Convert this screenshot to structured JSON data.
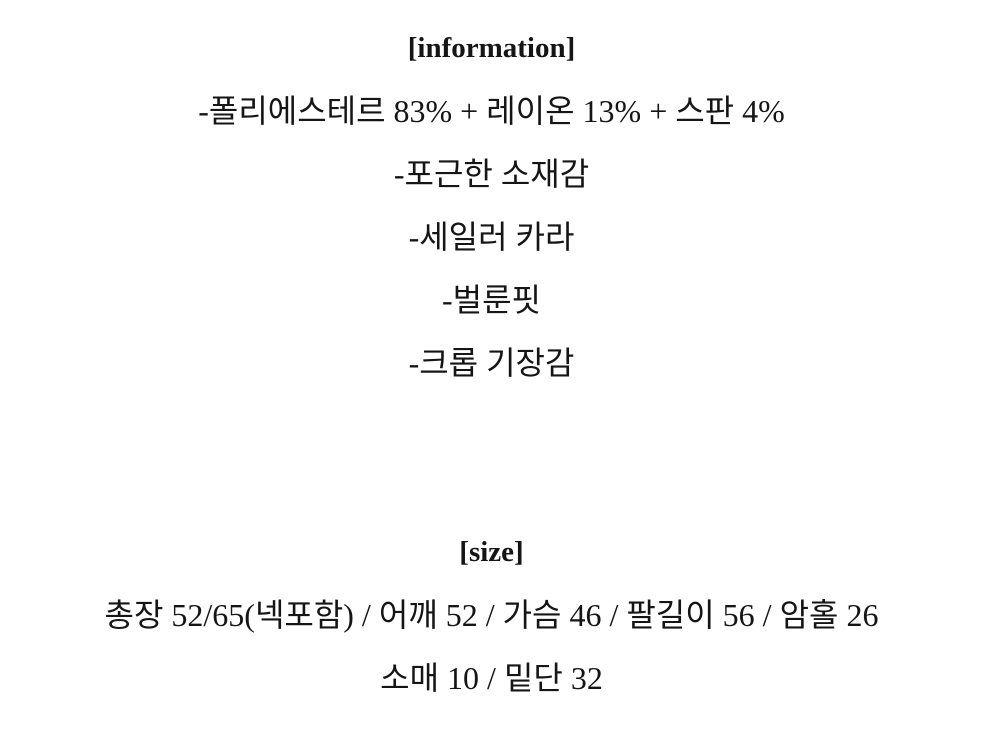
{
  "page": {
    "background": "#ffffff",
    "text_color": "#151515"
  },
  "information_section": {
    "title": "[information]",
    "lines": [
      "-폴리에스테르 83% + 레이온 13% + 스판 4%",
      "-포근한 소재감",
      "-세일러 카라",
      "-벌룬핏",
      "-크롭 기장감"
    ]
  },
  "size_section": {
    "title": "[size]",
    "lines": [
      "총장 52/65(넥포함) / 어깨 52 / 가슴 46 / 팔길이 56 / 암홀 26",
      "소매 10 / 밑단 32"
    ]
  }
}
